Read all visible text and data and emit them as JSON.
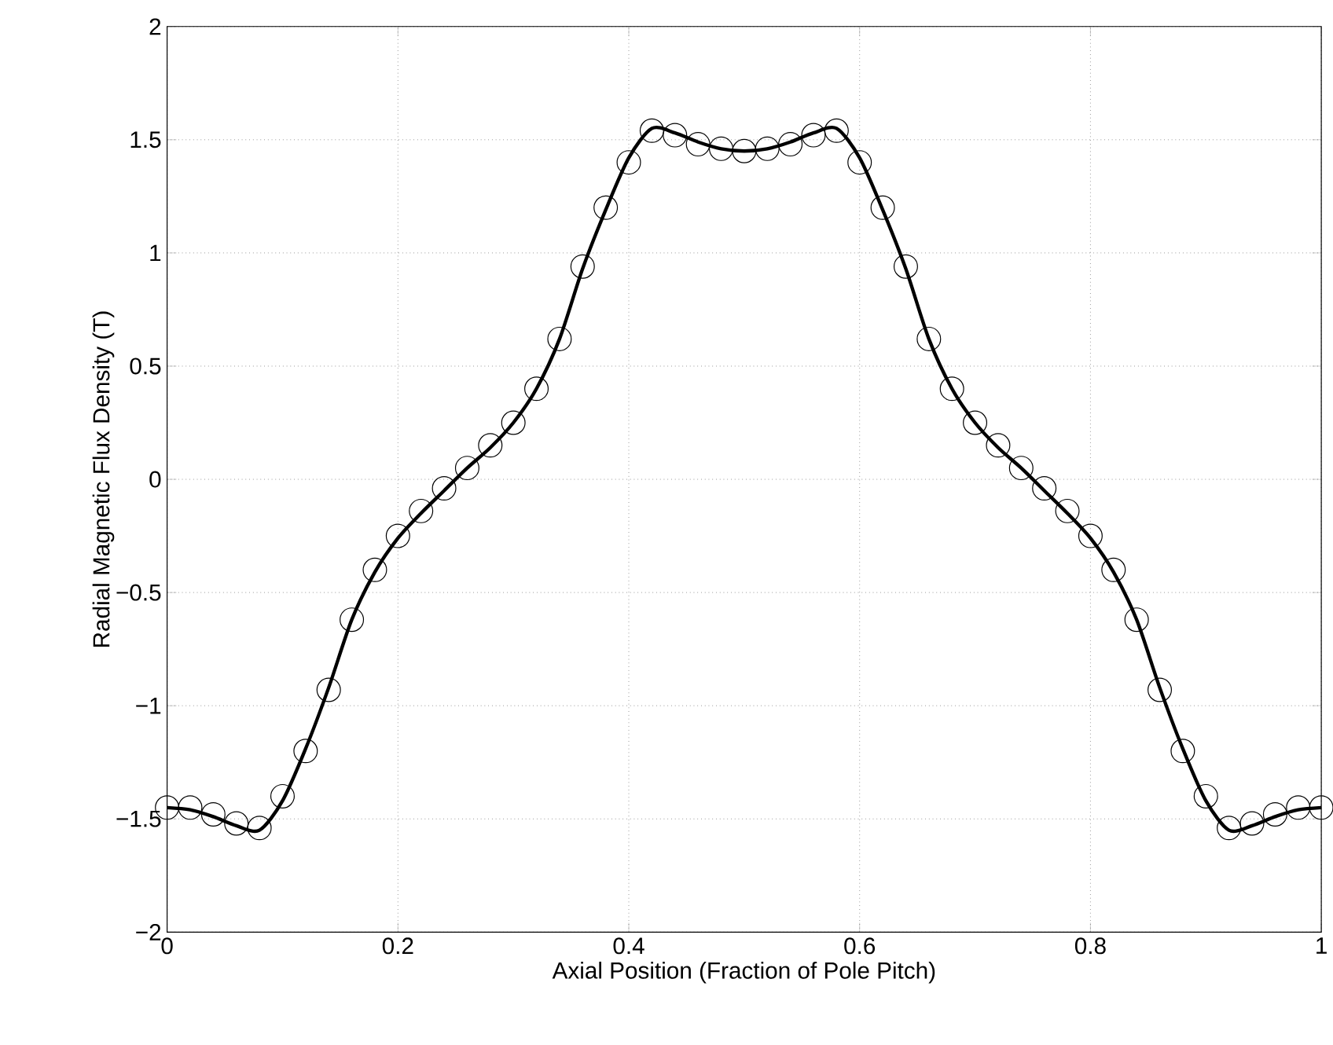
{
  "chart_data": {
    "type": "line",
    "xlabel": "Axial Position (Fraction of Pole Pitch)",
    "ylabel": "Radial Magnetic Flux Density (T)",
    "xlim": [
      0,
      1
    ],
    "ylim": [
      -2,
      2
    ],
    "xticks": [
      0,
      0.2,
      0.4,
      0.6,
      0.8,
      1
    ],
    "yticks": [
      {
        "value": -2,
        "label": "−2"
      },
      {
        "value": -1.5,
        "label": "−1.5"
      },
      {
        "value": -1,
        "label": "−1"
      },
      {
        "value": -0.5,
        "label": "−0.5"
      },
      0,
      0.5,
      1,
      1.5,
      2
    ],
    "grid": true,
    "series": [
      {
        "color": "#000000",
        "marker": "none",
        "line_style": "solid",
        "x": [
          0,
          0.02,
          0.04,
          0.06,
          0.08,
          0.1,
          0.12,
          0.14,
          0.16,
          0.18,
          0.2,
          0.22,
          0.24,
          0.26,
          0.28,
          0.3,
          0.32,
          0.34,
          0.36,
          0.38,
          0.4,
          0.42,
          0.44,
          0.46,
          0.48,
          0.5,
          0.52,
          0.54,
          0.56,
          0.58,
          0.6,
          0.62,
          0.64,
          0.66,
          0.68,
          0.7,
          0.72,
          0.74,
          0.76,
          0.78,
          0.8,
          0.82,
          0.84,
          0.86,
          0.88,
          0.9,
          0.92,
          0.94,
          0.96,
          0.98,
          1.0
        ],
        "values": [
          -1.45,
          -1.46,
          -1.49,
          -1.53,
          -1.55,
          -1.42,
          -1.19,
          -0.92,
          -0.62,
          -0.41,
          -0.26,
          -0.15,
          -0.05,
          0.05,
          0.14,
          0.25,
          0.4,
          0.62,
          0.93,
          1.19,
          1.42,
          1.55,
          1.53,
          1.49,
          1.46,
          1.45,
          1.46,
          1.49,
          1.53,
          1.55,
          1.42,
          1.19,
          0.93,
          0.62,
          0.4,
          0.25,
          0.14,
          0.05,
          -0.05,
          -0.15,
          -0.26,
          -0.41,
          -0.62,
          -0.92,
          -1.19,
          -1.42,
          -1.55,
          -1.53,
          -1.49,
          -1.46,
          -1.45
        ]
      },
      {
        "type": "scatter",
        "color": "#000000",
        "marker": "circle",
        "x": [
          0,
          0.02,
          0.04,
          0.06,
          0.08,
          0.1,
          0.12,
          0.14,
          0.16,
          0.18,
          0.2,
          0.22,
          0.24,
          0.26,
          0.28,
          0.3,
          0.32,
          0.34,
          0.36,
          0.38,
          0.4,
          0.42,
          0.44,
          0.46,
          0.48,
          0.5,
          0.52,
          0.54,
          0.56,
          0.58,
          0.6,
          0.62,
          0.64,
          0.66,
          0.68,
          0.7,
          0.72,
          0.74,
          0.76,
          0.78,
          0.8,
          0.82,
          0.84,
          0.86,
          0.88,
          0.9,
          0.92,
          0.94,
          0.96,
          0.98,
          1.0
        ],
        "values": [
          -1.45,
          -1.45,
          -1.48,
          -1.52,
          -1.54,
          -1.4,
          -1.2,
          -0.93,
          -0.62,
          -0.4,
          -0.25,
          -0.14,
          -0.04,
          0.05,
          0.15,
          0.25,
          0.4,
          0.62,
          0.94,
          1.2,
          1.4,
          1.54,
          1.52,
          1.48,
          1.46,
          1.45,
          1.46,
          1.48,
          1.52,
          1.54,
          1.4,
          1.2,
          0.94,
          0.62,
          0.4,
          0.25,
          0.15,
          0.05,
          -0.04,
          -0.14,
          -0.25,
          -0.4,
          -0.62,
          -0.93,
          -1.2,
          -1.4,
          -1.54,
          -1.52,
          -1.48,
          -1.45,
          -1.45
        ]
      }
    ]
  }
}
